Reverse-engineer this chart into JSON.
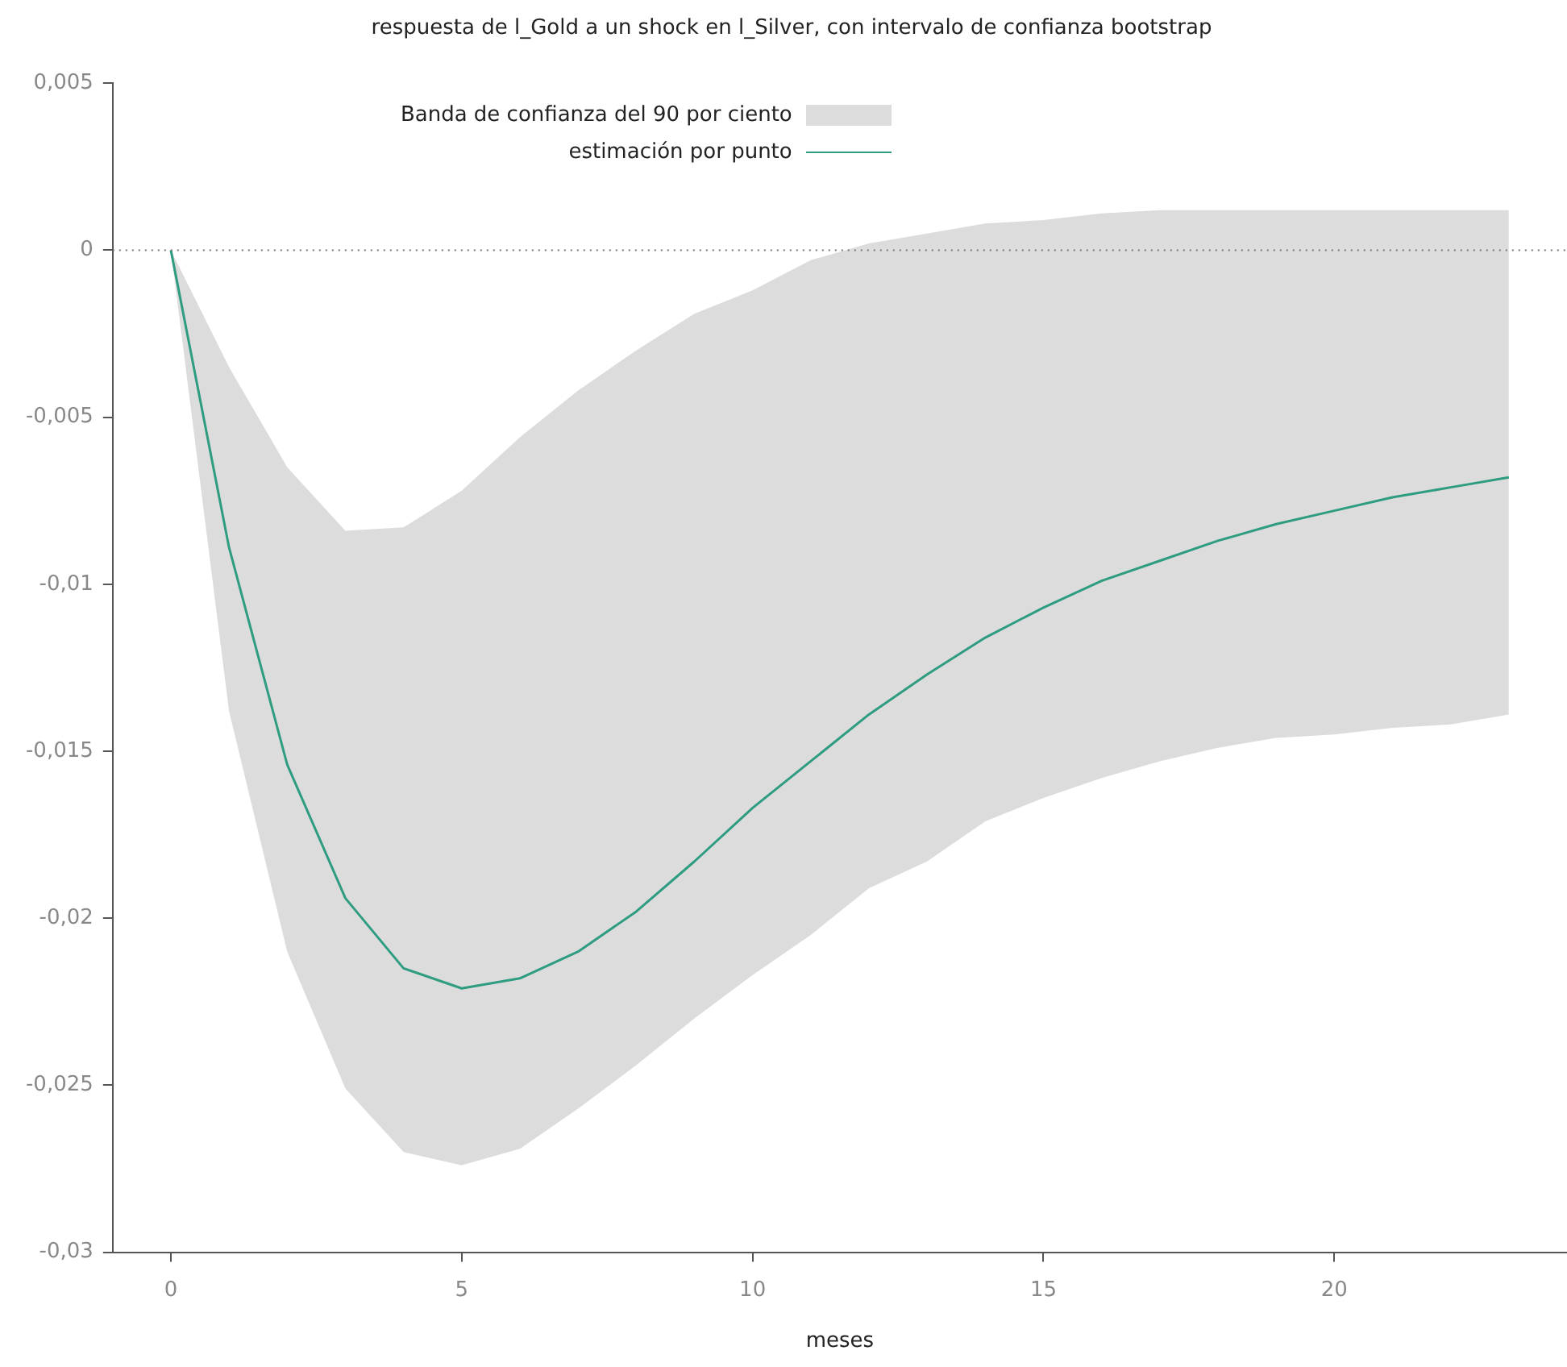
{
  "chart_data": {
    "type": "line",
    "title": "respuesta de l_Gold a un shock en l_Silver, con intervalo de confianza bootstrap",
    "xlabel": "meses",
    "x": [
      0,
      1,
      2,
      3,
      4,
      5,
      6,
      7,
      8,
      9,
      10,
      11,
      12,
      13,
      14,
      15,
      16,
      17,
      18,
      19,
      20,
      21,
      22,
      23
    ],
    "series": [
      {
        "name": "estimación por punto",
        "color": "#2e9c80",
        "values": [
          0,
          -0.0089,
          -0.0154,
          -0.0194,
          -0.0215,
          -0.0221,
          -0.0218,
          -0.021,
          -0.0198,
          -0.0183,
          -0.0167,
          -0.0153,
          -0.0139,
          -0.0127,
          -0.0116,
          -0.0107,
          -0.0099,
          -0.0093,
          -0.0087,
          -0.0082,
          -0.0078,
          -0.0074,
          -0.0071,
          -0.0068
        ],
        "lower": [
          0,
          -0.0138,
          -0.021,
          -0.0251,
          -0.027,
          -0.0274,
          -0.0269,
          -0.0257,
          -0.0244,
          -0.023,
          -0.0217,
          -0.0205,
          -0.0191,
          -0.0183,
          -0.0171,
          -0.0164,
          -0.0158,
          -0.0153,
          -0.0149,
          -0.0146,
          -0.0145,
          -0.0143,
          -0.0142,
          -0.0139
        ],
        "upper": [
          0,
          -0.0035,
          -0.0065,
          -0.0084,
          -0.0083,
          -0.0072,
          -0.0056,
          -0.0042,
          -0.003,
          -0.0019,
          -0.0012,
          -0.0003,
          0.0002,
          0.0005,
          0.0008,
          0.0009,
          0.0011,
          0.0012,
          0.0012,
          0.0012,
          0.0012,
          0.0012,
          0.0012,
          0.0012
        ]
      }
    ],
    "annotations": [
      "Banda de confianza del 90 por ciento"
    ],
    "xlim": [
      -1,
      24
    ],
    "xticks": [
      0,
      5,
      10,
      15,
      20
    ],
    "ylim": [
      -0.03,
      0.005
    ],
    "yticks": [
      {
        "value": -0.03,
        "label": "-0,03"
      },
      {
        "value": -0.025,
        "label": "-0,025"
      },
      {
        "value": -0.02,
        "label": "-0,02"
      },
      {
        "value": -0.015,
        "label": "-0,015"
      },
      {
        "value": -0.01,
        "label": "-0,01"
      },
      {
        "value": -0.005,
        "label": "-0,005"
      },
      {
        "value": 0,
        "label": "0"
      },
      {
        "value": 0.005,
        "label": "0,005"
      }
    ],
    "ref_lines": [
      {
        "axis": "y",
        "value": 0,
        "color": "#777777",
        "line_style": "dotted"
      }
    ],
    "grid": false,
    "legend": "top left",
    "marker": "none",
    "line_style": "solid"
  }
}
